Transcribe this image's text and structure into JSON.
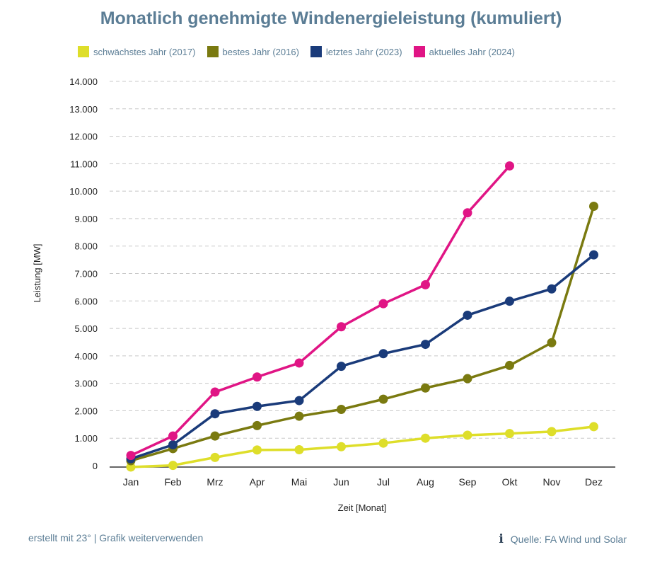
{
  "chart_data": {
    "type": "line",
    "title": "Monatlich genehmigte Windenergieleistung (kumuliert)",
    "xlabel": "Zeit [Monat]",
    "ylabel": "Leistung [MW]",
    "categories": [
      "Jan",
      "Feb",
      "Mrz",
      "Apr",
      "Mai",
      "Jun",
      "Jul",
      "Aug",
      "Sep",
      "Okt",
      "Nov",
      "Dez"
    ],
    "ylim": [
      0,
      14000
    ],
    "yticks": [
      0,
      1000,
      2000,
      3000,
      4000,
      5000,
      6000,
      7000,
      8000,
      9000,
      10000,
      11000,
      12000,
      13000,
      14000
    ],
    "ytick_labels": [
      "0",
      "1.000",
      "2.000",
      "3.000",
      "4.000",
      "5.000",
      "6.000",
      "7.000",
      "8.000",
      "9.000",
      "10.000",
      "11.000",
      "12.000",
      "13.000",
      "14.000"
    ],
    "grid": true,
    "legend": "top",
    "series": [
      {
        "name": "schwächstes Jahr (2017)",
        "color": "#dede2a",
        "values": [
          -50,
          10,
          300,
          570,
          580,
          690,
          820,
          1000,
          1110,
          1170,
          1240,
          1420
        ]
      },
      {
        "name": "bestes Jahr (2016)",
        "color": "#7a7a10",
        "values": [
          180,
          620,
          1080,
          1460,
          1800,
          2050,
          2420,
          2830,
          3170,
          3650,
          4480,
          9450
        ]
      },
      {
        "name": "letztes Jahr (2023)",
        "color": "#1a3b7a",
        "values": [
          250,
          760,
          1890,
          2160,
          2370,
          3620,
          4080,
          4420,
          5480,
          5990,
          6440,
          7680
        ]
      },
      {
        "name": "aktuelles Jahr (2024)",
        "color": "#e01585",
        "values": [
          370,
          1080,
          2680,
          3230,
          3740,
          5060,
          5900,
          6590,
          9210,
          10920,
          null,
          null
        ]
      }
    ]
  },
  "footer": {
    "left_text": "erstellt mit 23° | Grafik  weiterverwenden",
    "source_text": "Quelle: FA Wind und Solar",
    "info_icon": "i"
  }
}
